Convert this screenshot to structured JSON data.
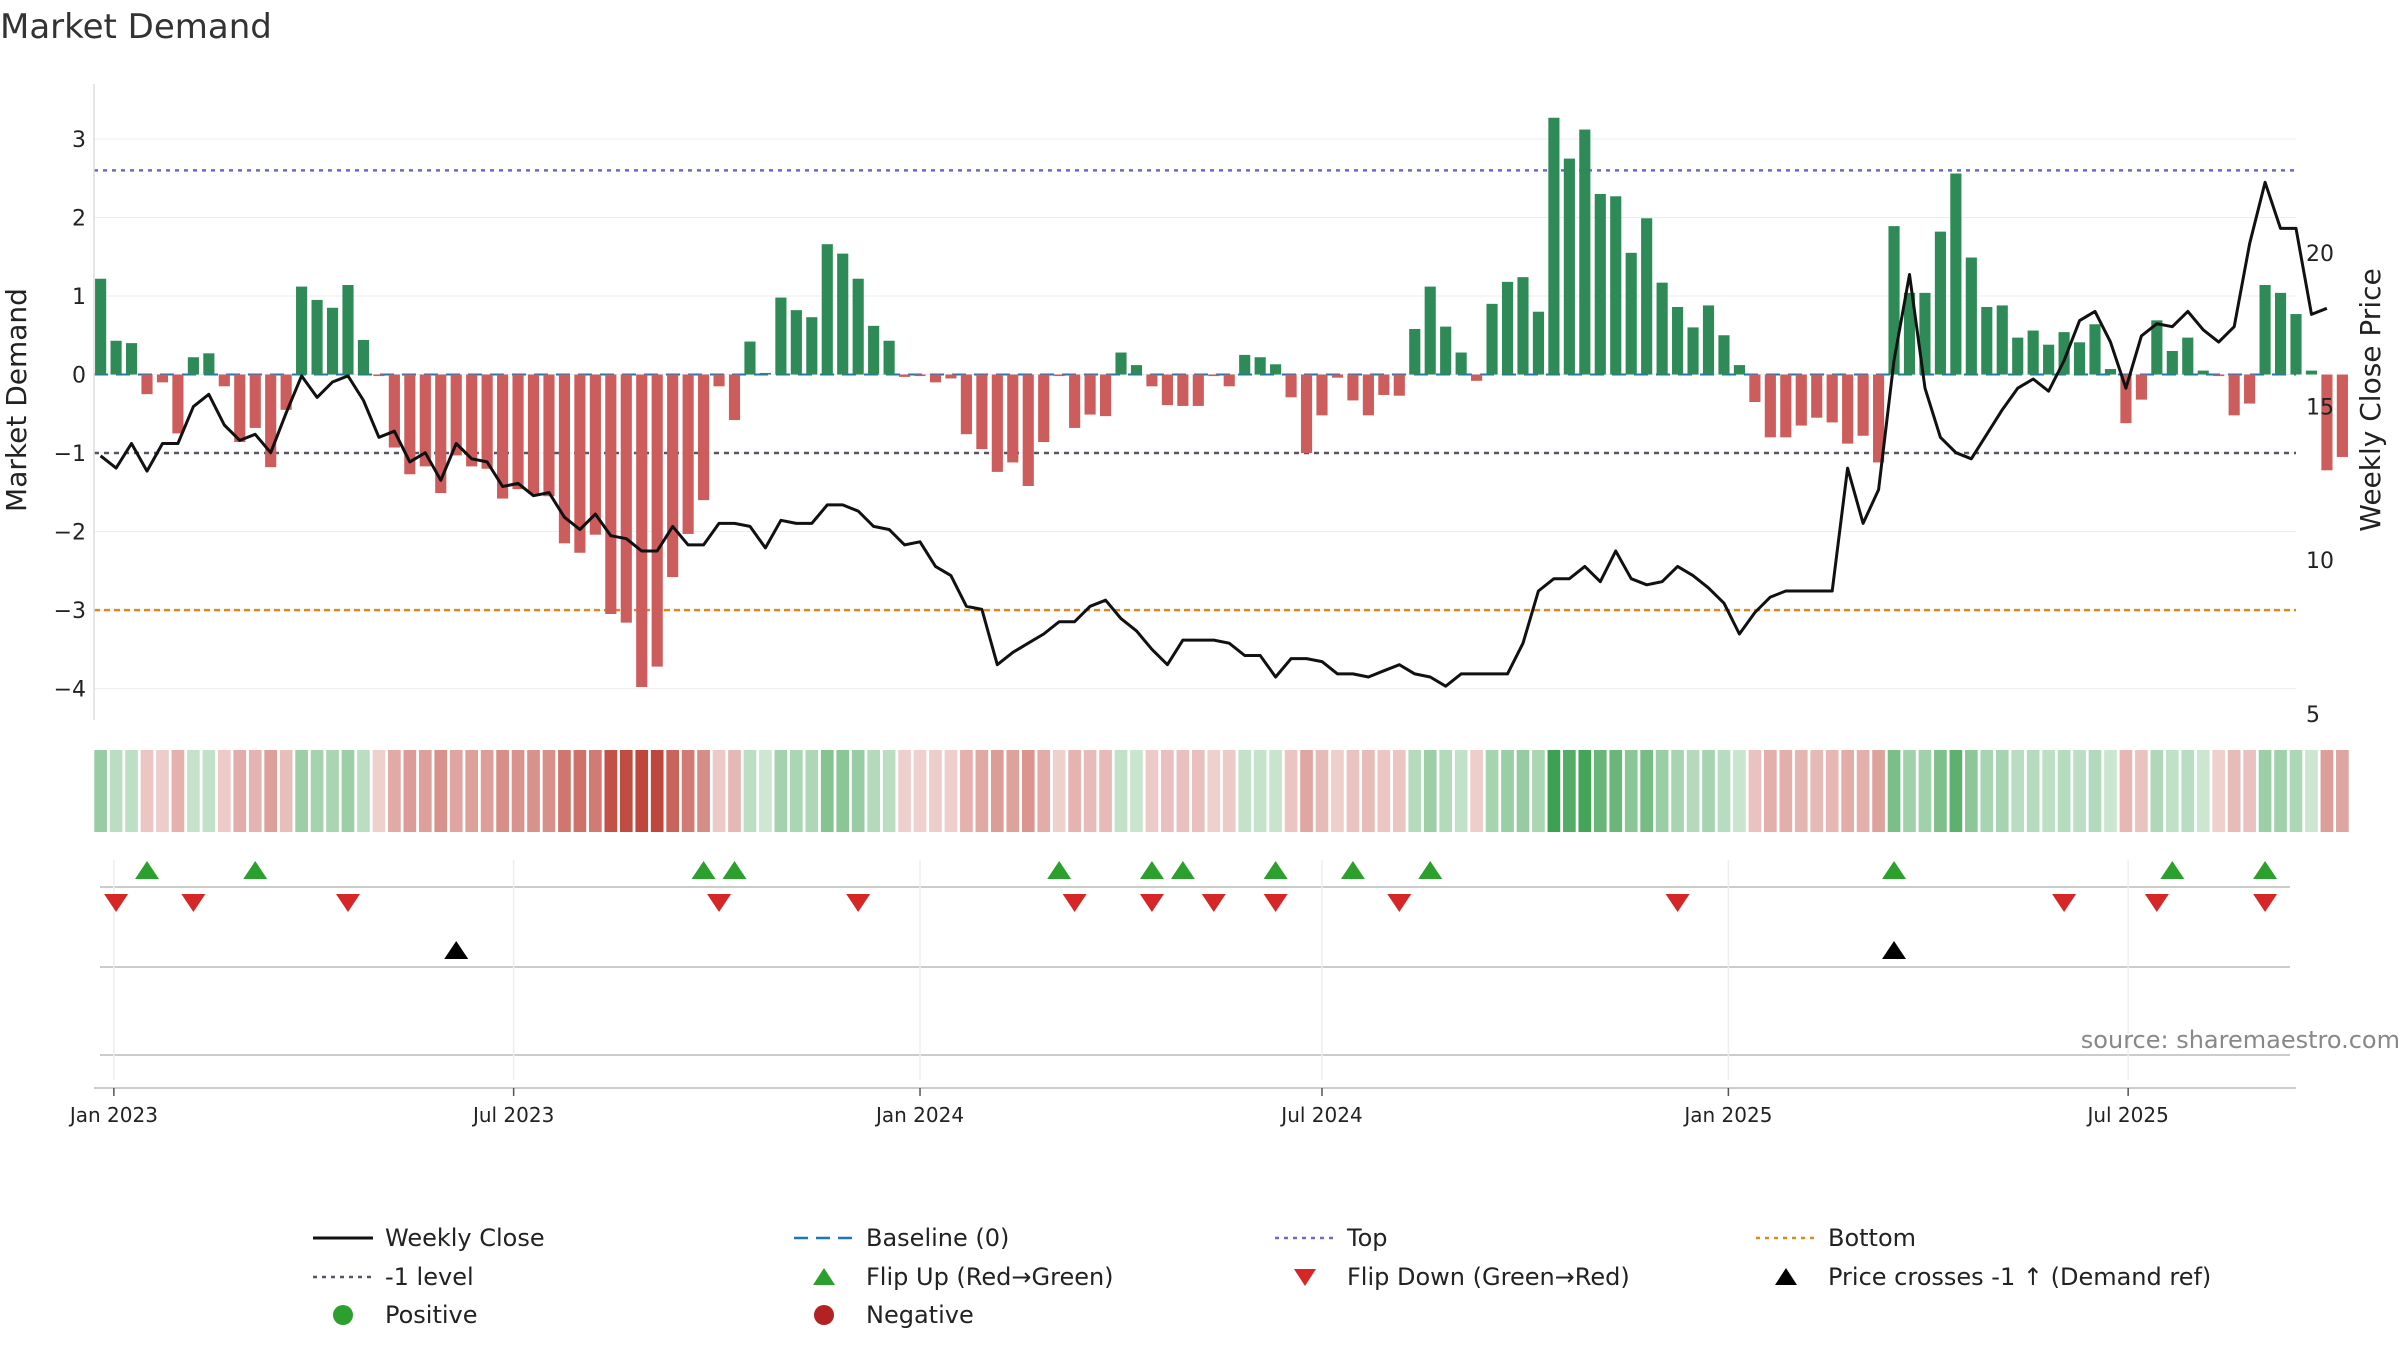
{
  "chart_data": {
    "type": "bar",
    "title": "Market Demand",
    "ylabel": "Market Demand",
    "y2label": "Weekly Close Price",
    "ylim": [
      -4.4,
      3.7
    ],
    "y2lim": [
      4.8,
      25.5
    ],
    "yticks": [
      3,
      2,
      1,
      0,
      -1,
      -2,
      -3,
      -4
    ],
    "y2ticks": [
      20,
      15,
      10,
      5
    ],
    "x_start": "2022-12-23",
    "x_end": "2025-09-15",
    "xticks": [
      {
        "date": "2023-01-01",
        "label": "Jan 2023"
      },
      {
        "date": "2023-07-01",
        "label": "Jul 2023"
      },
      {
        "date": "2024-01-01",
        "label": "Jan 2024"
      },
      {
        "date": "2024-07-01",
        "label": "Jul 2024"
      },
      {
        "date": "2025-01-01",
        "label": "Jan 2025"
      },
      {
        "date": "2025-07-01",
        "label": "Jul 2025"
      }
    ],
    "weeks_start": "2022-12-26",
    "top_level": 2.6,
    "bottom_level": -3.0,
    "ref_level": -1.0,
    "baseline": 0,
    "demand": [
      1.22,
      0.43,
      0.4,
      -0.25,
      -0.1,
      -0.75,
      0.22,
      0.27,
      -0.15,
      -0.86,
      -0.68,
      -1.18,
      -0.45,
      1.12,
      0.95,
      0.85,
      1.14,
      0.44,
      -0.02,
      -0.93,
      -1.27,
      -1.17,
      -1.51,
      -1.03,
      -1.17,
      -1.2,
      -1.58,
      -1.46,
      -1.52,
      -1.55,
      -2.15,
      -2.27,
      -2.04,
      -3.05,
      -3.16,
      -3.98,
      -3.72,
      -2.58,
      -2.03,
      -1.6,
      -0.15,
      -0.58,
      0.42,
      0.02,
      0.98,
      0.82,
      0.73,
      1.66,
      1.54,
      1.22,
      0.62,
      0.43,
      -0.03,
      -0.02,
      -0.1,
      -0.05,
      -0.76,
      -0.95,
      -1.24,
      -1.12,
      -1.42,
      -0.86,
      -0.02,
      -0.68,
      -0.51,
      -0.53,
      0.28,
      0.12,
      -0.15,
      -0.39,
      -0.4,
      -0.4,
      -0.02,
      -0.15,
      0.25,
      0.22,
      0.13,
      -0.29,
      -1.0,
      -0.52,
      -0.04,
      -0.33,
      -0.52,
      -0.26,
      -0.27,
      0.58,
      1.12,
      0.61,
      0.28,
      -0.08,
      0.9,
      1.18,
      1.24,
      0.8,
      3.27,
      2.75,
      3.12,
      2.3,
      2.27,
      1.55,
      1.99,
      1.17,
      0.86,
      0.6,
      0.88,
      0.5,
      0.12,
      -0.35,
      -0.8,
      -0.8,
      -0.65,
      -0.55,
      -0.61,
      -0.88,
      -0.78,
      -1.12,
      1.89,
      1.04,
      1.04,
      1.82,
      2.56,
      1.49,
      0.86,
      0.88,
      0.47,
      0.56,
      0.38,
      0.54,
      0.41,
      0.64,
      0.07,
      -0.62,
      -0.32,
      0.69,
      0.3,
      0.47,
      0.05,
      -0.02,
      -0.52,
      -0.37,
      1.14,
      1.04,
      0.77,
      0.05,
      -1.22,
      -1.05
    ],
    "price": [
      13.4,
      13.0,
      13.8,
      12.9,
      13.8,
      13.8,
      15.0,
      15.4,
      14.4,
      13.9,
      14.1,
      13.5,
      14.8,
      16.0,
      15.3,
      15.8,
      16.0,
      15.2,
      14.0,
      14.2,
      13.2,
      13.5,
      12.6,
      13.8,
      13.3,
      13.2,
      12.4,
      12.5,
      12.1,
      12.2,
      11.4,
      11.0,
      11.5,
      10.8,
      10.7,
      10.3,
      10.3,
      11.1,
      10.5,
      10.5,
      11.2,
      11.2,
      11.1,
      10.4,
      11.3,
      11.2,
      11.2,
      11.8,
      11.8,
      11.6,
      11.1,
      11.0,
      10.5,
      10.6,
      9.8,
      9.5,
      8.5,
      8.4,
      6.6,
      7.0,
      7.3,
      7.6,
      8.0,
      8.0,
      8.5,
      8.7,
      8.1,
      7.7,
      7.1,
      6.6,
      7.4,
      7.4,
      7.4,
      7.3,
      6.9,
      6.9,
      6.2,
      6.8,
      6.8,
      6.7,
      6.3,
      6.3,
      6.2,
      6.4,
      6.6,
      6.3,
      6.2,
      5.9,
      6.3,
      6.3,
      6.3,
      6.3,
      7.3,
      9.0,
      9.4,
      9.4,
      9.8,
      9.3,
      10.3,
      9.4,
      9.2,
      9.3,
      9.8,
      9.5,
      9.1,
      8.6,
      7.6,
      8.3,
      8.8,
      9.0,
      9.0,
      9.0,
      9.0,
      13.0,
      11.2,
      12.3,
      16.5,
      19.3,
      15.6,
      14.0,
      13.5,
      13.3,
      14.1,
      14.9,
      15.6,
      15.9,
      15.5,
      16.5,
      17.8,
      18.1,
      17.1,
      15.6,
      17.3,
      17.7,
      17.6,
      18.1,
      17.5,
      17.1,
      17.6,
      20.3,
      22.3,
      20.8,
      20.8,
      18.0,
      18.2
    ]
  },
  "flip_up_weeks": [
    3,
    10,
    39,
    41,
    62,
    68,
    70,
    76,
    81,
    86,
    116,
    134,
    140
  ],
  "flip_down_weeks": [
    1,
    6,
    16,
    40,
    49,
    63,
    68,
    72,
    76,
    84,
    102,
    127,
    133,
    140
  ],
  "price_cross_weeks": [
    23,
    116
  ],
  "legend": {
    "items": [
      {
        "label": "Weekly Close",
        "kind": "line-solid",
        "color": "#111111"
      },
      {
        "label": "Baseline (0)",
        "kind": "line-dash",
        "color": "#1f77b4"
      },
      {
        "label": "Top",
        "kind": "line-dot",
        "color": "#6a6acd"
      },
      {
        "label": "Bottom",
        "kind": "line-dot",
        "color": "#d98c1a"
      },
      {
        "label": "-1 level",
        "kind": "line-dot",
        "color": "#555566"
      },
      {
        "label": "Flip Up (Red→Green)",
        "kind": "tri-up",
        "color": "#2ca02c"
      },
      {
        "label": "Flip Down (Green→Red)",
        "kind": "tri-down",
        "color": "#d62728"
      },
      {
        "label": "Price crosses -1 ↑ (Demand ref)",
        "kind": "tri-up",
        "color": "#000000"
      },
      {
        "label": "Positive",
        "kind": "dot",
        "color": "#2ca02c"
      },
      {
        "label": "Negative",
        "kind": "dot",
        "color": "#b22222"
      }
    ]
  },
  "source": "source: sharemaestro.com",
  "colors": {
    "positive": "#2e8b57",
    "negative": "#cd5c5c"
  }
}
